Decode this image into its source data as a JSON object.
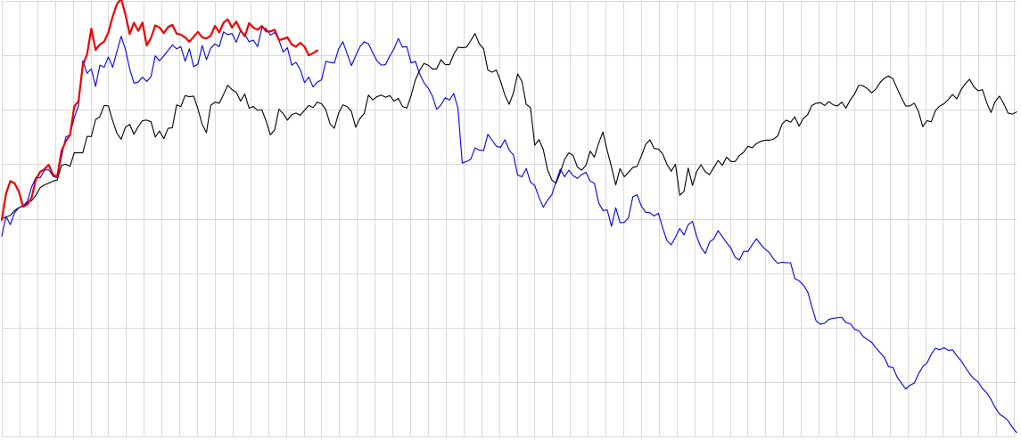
{
  "chart_data": {
    "type": "line",
    "title": "",
    "xlabel": "",
    "ylabel": "",
    "grid": true,
    "legend": "none",
    "xlim": [
      0,
      200
    ],
    "ylim": [
      -40,
      40
    ],
    "x_grid_step": 3.5,
    "y_grid_step": 10,
    "series": [
      {
        "color": "#000000",
        "stroke_width": 1.1,
        "x_start": 0,
        "x_step": 1,
        "values": [
          0.0,
          0.3,
          0.6,
          1.5,
          2.0,
          2.4,
          3.0,
          3.3,
          4.3,
          5.7,
          6.2,
          6.5,
          6.9,
          7.1,
          9.8,
          10.0,
          9.6,
          12.1,
          12.1,
          12.1,
          15.1,
          15.1,
          18.2,
          18.7,
          20.8,
          20.7,
          18.0,
          15.7,
          14.6,
          16.8,
          17.3,
          15.5,
          16.9,
          18.0,
          18.1,
          17.8,
          15.0,
          16.1,
          14.7,
          16.6,
          16.7,
          20.9,
          20.6,
          22.6,
          22.4,
          22.5,
          20.2,
          17.3,
          15.8,
          20.8,
          21.4,
          21.2,
          22.8,
          24.5,
          23.7,
          23.2,
          21.6,
          22.9,
          20.3,
          20.6,
          19.9,
          20.0,
          17.9,
          15.4,
          16.3,
          20.1,
          19.3,
          18.1,
          19.1,
          19.4,
          19.0,
          19.9,
          20.8,
          20.4,
          21.4,
          21.1,
          20.0,
          17.4,
          16.6,
          19.4,
          20.9,
          20.6,
          19.7,
          16.8,
          18.4,
          19.3,
          22.7,
          21.8,
          22.4,
          22.7,
          22.3,
          22.6,
          21.6,
          22.1,
          20.6,
          20.3,
          22.6,
          25.5,
          27.2,
          28.5,
          28.2,
          27.5,
          27.5,
          29.2,
          28.3,
          28.3,
          30.2,
          31.5,
          31.4,
          31.5,
          32.7,
          34.0,
          32.1,
          31.2,
          27.3,
          26.9,
          27.3,
          25.2,
          22.7,
          21.0,
          23.1,
          26.6,
          25.2,
          21.0,
          20.4,
          13.5,
          14.5,
          12.7,
          9.0,
          7.1,
          6.5,
          8.5,
          10.9,
          12.1,
          11.6,
          9.5,
          8.9,
          9.8,
          12.4,
          11.3,
          13.9,
          15.9,
          12.5,
          9.5,
          6.2,
          9.2,
          7.7,
          8.5,
          9.4,
          9.6,
          11.5,
          13.6,
          14.5,
          12.9,
          12.8,
          11.9,
          10.0,
          8.7,
          10.0,
          4.3,
          5.0,
          9.3,
          6.1,
          8.7,
          9.9,
          8.6,
          8.1,
          9.4,
          10.7,
          9.8,
          11.3,
          10.5,
          10.5,
          11.6,
          12.2,
          13.3,
          13.0,
          13.8,
          14.2,
          14.4,
          14.4,
          14.6,
          15.2,
          17.4,
          18.1,
          17.7,
          18.7,
          17.0,
          18.4,
          19.1,
          20.8,
          21.2,
          21.3,
          20.8,
          21.5,
          20.9,
          20.7,
          21.4,
          20.3,
          21.8,
          22.9,
          24.5,
          24.4,
          23.9,
          23.1,
          23.8,
          25.0,
          25.8,
          26.2,
          25.7,
          23.9,
          22.2,
          20.7,
          20.7,
          21.2,
          19.7,
          16.9,
          18.0,
          17.8,
          19.9,
          20.7,
          21.1,
          21.9,
          22.8,
          22.0,
          23.7,
          24.8,
          25.6,
          24.2,
          23.5,
          23.7,
          21.3,
          19.5,
          21.5,
          22.5,
          21.1,
          19.4,
          19.2,
          19.6
        ]
      },
      {
        "color": "#0000ee",
        "stroke_width": 1.1,
        "x_start": 0,
        "x_step": 1,
        "values": [
          -3.2,
          0.4,
          -1.1,
          1.1,
          2.0,
          2.3,
          3.2,
          5.8,
          7.6,
          7.5,
          8.9,
          9.0,
          7.8,
          7.5,
          11.3,
          15.0,
          15.4,
          18.6,
          20.7,
          29.0,
          26.7,
          27.5,
          24.3,
          28.2,
          27.8,
          29.7,
          27.8,
          30.7,
          33.5,
          31.1,
          27.5,
          24.9,
          25.1,
          26.0,
          25.2,
          26.1,
          29.9,
          29.0,
          29.9,
          30.9,
          31.9,
          31.2,
          31.6,
          28.9,
          31.2,
          27.9,
          28.4,
          31.8,
          29.2,
          31.3,
          32.1,
          31.6,
          34.3,
          33.8,
          34.0,
          32.4,
          34.5,
          33.8,
          32.5,
          32.8,
          31.6,
          35.1,
          34.9,
          33.7,
          34.2,
          32.8,
          30.6,
          31.4,
          28.2,
          28.7,
          27.4,
          25.0,
          26.0,
          24.2,
          25.1,
          25.5,
          28.9,
          28.7,
          28.6,
          31.2,
          32.5,
          30.3,
          28.1,
          29.9,
          31.6,
          32.5,
          32.1,
          30.5,
          29.0,
          28.2,
          28.3,
          29.9,
          31.2,
          33.1,
          31.5,
          31.6,
          28.6,
          28.9,
          26.6,
          25.0,
          24.0,
          22.5,
          20.1,
          20.9,
          22.2,
          21.8,
          23.0,
          20.2,
          10.2,
          10.5,
          10.9,
          13.0,
          12.6,
          12.5,
          15.5,
          14.4,
          13.3,
          13.1,
          14.5,
          12.6,
          11.7,
          8.0,
          7.7,
          9.2,
          6.7,
          6.1,
          3.9,
          2.1,
          3.4,
          4.4,
          6.8,
          9.1,
          7.7,
          8.9,
          7.9,
          7.4,
          8.1,
          8.5,
          6.9,
          6.5,
          2.9,
          1.5,
          1.6,
          -1.4,
          2.0,
          -0.7,
          -0.7,
          0.2,
          4.0,
          4.4,
          2.3,
          1.2,
          1.1,
          0.5,
          1.0,
          -1.7,
          -4.0,
          -4.8,
          -3.4,
          -1.8,
          -3.0,
          -1.1,
          -0.5,
          -3.3,
          -5.3,
          -6.4,
          -4.3,
          -3.7,
          -2.2,
          -3.3,
          -4.4,
          -5.4,
          -7.1,
          -7.6,
          -6.0,
          -6.0,
          -4.8,
          -3.7,
          -4.7,
          -5.6,
          -6.2,
          -7.4,
          -8.2,
          -8.0,
          -8.1,
          -8.1,
          -11.0,
          -11.4,
          -12.2,
          -13.4,
          -16.2,
          -18.8,
          -19.4,
          -19.2,
          -18.5,
          -18.3,
          -18.2,
          -18.1,
          -19.1,
          -19.3,
          -20.3,
          -20.6,
          -21.6,
          -22.2,
          -22.7,
          -23.7,
          -24.6,
          -25.5,
          -27.2,
          -27.3,
          -29.1,
          -30.2,
          -31.3,
          -30.6,
          -30.2,
          -28.5,
          -27.2,
          -26.5,
          -24.9,
          -23.8,
          -24.1,
          -23.7,
          -24.2,
          -24.1,
          -25.2,
          -26.1,
          -27.3,
          -28.5,
          -29.4,
          -30.0,
          -31.2,
          -32.0,
          -33.2,
          -34.7,
          -35.9,
          -36.4,
          -37.1,
          -38.3,
          -39.3
        ]
      },
      {
        "color": "#ee0000",
        "stroke_width": 2.2,
        "x_start": 0,
        "x_step": 1,
        "values": [
          -0.2,
          4.6,
          6.9,
          6.5,
          5.0,
          2.2,
          2.6,
          3.9,
          7.2,
          8.6,
          9.1,
          9.9,
          8.1,
          7.7,
          12.4,
          14.2,
          15.4,
          20.6,
          21.6,
          28.2,
          30.2,
          34.9,
          31.0,
          32.0,
          32.5,
          34.2,
          37.1,
          39.4,
          40.4,
          37.5,
          33.9,
          36.0,
          34.5,
          36.0,
          31.8,
          33.2,
          35.5,
          35.1,
          34.1,
          35.2,
          35.6,
          34.0,
          33.8,
          33.3,
          32.5,
          33.4,
          34.3,
          33.3,
          33.1,
          33.6,
          35.4,
          34.2,
          36.0,
          36.6,
          35.1,
          36.2,
          34.6,
          33.5,
          35.9,
          35.1,
          34.7,
          35.4,
          34.4,
          34.4,
          34.7,
          32.8,
          33.0,
          33.3,
          32.0,
          31.6,
          32.3,
          31.6,
          30.0,
          30.4,
          30.9
        ]
      }
    ]
  }
}
